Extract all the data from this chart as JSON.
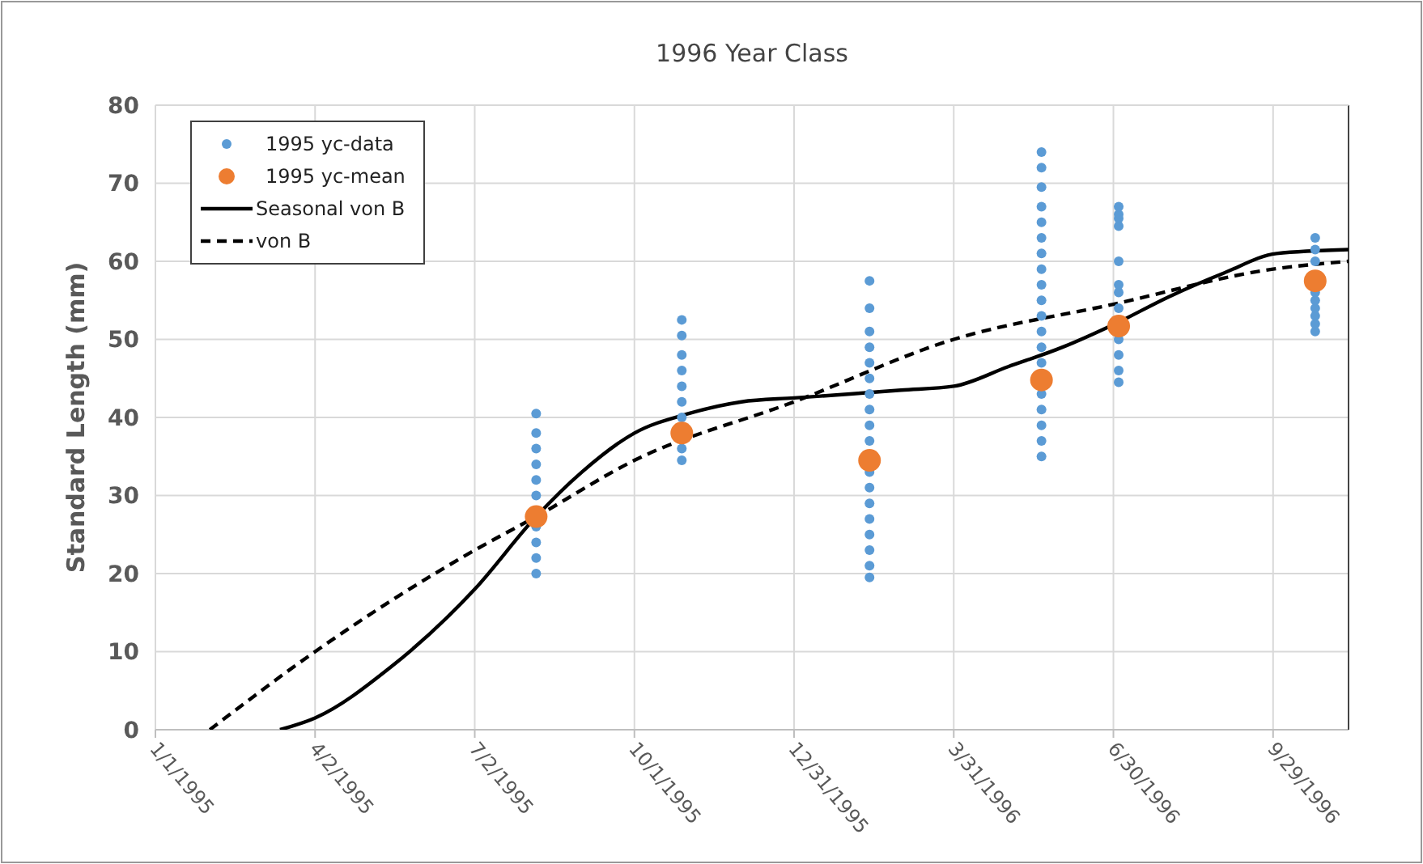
{
  "chart_data": {
    "type": "scatter",
    "title": "1996 Year Class",
    "ylabel": "Standard Length (mm)",
    "xlim": [
      "1995-01-01",
      "1996-11-11"
    ],
    "xticks": [
      {
        "value": "1995-01-01",
        "label": "1/1/1995"
      },
      {
        "value": "1995-04-02",
        "label": "4/2/1995"
      },
      {
        "value": "1995-07-02",
        "label": "7/2/1995"
      },
      {
        "value": "1995-10-01",
        "label": "10/1/1995"
      },
      {
        "value": "1995-12-31",
        "label": "12/31/1995"
      },
      {
        "value": "1996-03-31",
        "label": "3/31/1996"
      },
      {
        "value": "1996-06-30",
        "label": "6/30/1996"
      },
      {
        "value": "1996-09-29",
        "label": "9/29/1996"
      }
    ],
    "ylim": [
      0,
      80
    ],
    "yticks": [
      0,
      10,
      20,
      30,
      40,
      50,
      60,
      70,
      80
    ],
    "grid": true,
    "legend": "top left",
    "series": [
      {
        "name": "1995 yc-data",
        "color": "#5b9bd5",
        "marker": "circle",
        "x": [
          "1995-08-06",
          "1995-08-06",
          "1995-08-06",
          "1995-08-06",
          "1995-08-06",
          "1995-08-06",
          "1995-08-06",
          "1995-08-06",
          "1995-08-06",
          "1995-08-06",
          "1995-10-28",
          "1995-10-28",
          "1995-10-28",
          "1995-10-28",
          "1995-10-28",
          "1995-10-28",
          "1995-10-28",
          "1995-10-28",
          "1995-10-28",
          "1996-02-12",
          "1996-02-12",
          "1996-02-12",
          "1996-02-12",
          "1996-02-12",
          "1996-02-12",
          "1996-02-12",
          "1996-02-12",
          "1996-02-12",
          "1996-02-12",
          "1996-02-12",
          "1996-02-12",
          "1996-02-12",
          "1996-02-12",
          "1996-02-12",
          "1996-02-12",
          "1996-02-12",
          "1996-02-12",
          "1996-05-20",
          "1996-05-20",
          "1996-05-20",
          "1996-05-20",
          "1996-05-20",
          "1996-05-20",
          "1996-05-20",
          "1996-05-20",
          "1996-05-20",
          "1996-05-20",
          "1996-05-20",
          "1996-05-20",
          "1996-05-20",
          "1996-05-20",
          "1996-05-20",
          "1996-05-20",
          "1996-05-20",
          "1996-05-20",
          "1996-05-20",
          "1996-07-03",
          "1996-07-03",
          "1996-07-03",
          "1996-07-03",
          "1996-07-03",
          "1996-07-03",
          "1996-07-03",
          "1996-07-03",
          "1996-07-03",
          "1996-07-03",
          "1996-07-03",
          "1996-07-03",
          "1996-10-23",
          "1996-10-23",
          "1996-10-23",
          "1996-10-23",
          "1996-10-23",
          "1996-10-23",
          "1996-10-23",
          "1996-10-23",
          "1996-10-23"
        ],
        "values": [
          20,
          22,
          24,
          26,
          30,
          32,
          34,
          36,
          38,
          40.5,
          34.5,
          36,
          40,
          42,
          44,
          46,
          48,
          50.5,
          52.5,
          19.5,
          21,
          23,
          25,
          27,
          29,
          31,
          33,
          37,
          39,
          41,
          43,
          45,
          47,
          49,
          51,
          54,
          57.5,
          35,
          37,
          39,
          41,
          43,
          47,
          49,
          51,
          53,
          55,
          57,
          59,
          61,
          63,
          65,
          67,
          69.5,
          72,
          74,
          44.5,
          46,
          48,
          50,
          54,
          56,
          57,
          60,
          64.5,
          65.5,
          66,
          67,
          51,
          52,
          53,
          54,
          55,
          56,
          60,
          61.5,
          63
        ]
      },
      {
        "name": "1995 yc-mean",
        "color": "#ed7d31",
        "marker": "circle",
        "x": [
          "1995-08-06",
          "1995-10-28",
          "1996-02-12",
          "1996-05-20",
          "1996-07-03",
          "1996-10-23"
        ],
        "values": [
          27.3,
          38,
          34.5,
          44.8,
          51.7,
          57.5
        ]
      },
      {
        "name": "Seasonal von B",
        "type": "line",
        "color": "#000000",
        "line_style": "solid",
        "marker": "none",
        "x": [
          "1995-03-13",
          "1995-04-02",
          "1995-05-15",
          "1995-07-02",
          "1995-08-06",
          "1995-09-01",
          "1995-10-01",
          "1995-11-01",
          "1995-12-01",
          "1995-12-31",
          "1996-02-01",
          "1996-03-01",
          "1996-03-31",
          "1996-05-01",
          "1996-06-01",
          "1996-07-01",
          "1996-08-01",
          "1996-09-01",
          "1996-10-01",
          "1996-11-11"
        ],
        "values": [
          0,
          1.5,
          8,
          18,
          27.3,
          33,
          38,
          40.5,
          42,
          42.5,
          43,
          43.5,
          44,
          46.5,
          49,
          52,
          55.5,
          58.5,
          61,
          61.5
        ]
      },
      {
        "name": "von B",
        "type": "line",
        "color": "#000000",
        "line_style": "dashed",
        "marker": "none",
        "x": [
          "1995-02-01",
          "1995-04-02",
          "1995-07-02",
          "1995-08-06",
          "1995-10-01",
          "1995-12-31",
          "1996-03-31",
          "1996-06-30",
          "1996-09-29",
          "1996-11-11"
        ],
        "values": [
          0,
          10,
          23,
          27.3,
          34.5,
          42,
          50,
          54.5,
          59,
          60
        ]
      }
    ]
  }
}
